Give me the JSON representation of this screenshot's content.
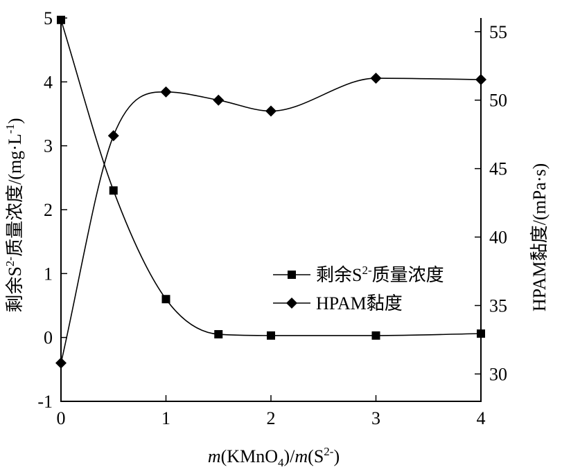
{
  "chart_data": {
    "type": "scatter",
    "x": [
      0,
      0.5,
      1,
      1.5,
      2,
      3,
      4
    ],
    "xticks": [
      "0",
      "1",
      "2",
      "3",
      "4"
    ],
    "xtick_values": [
      0,
      1,
      2,
      3,
      4
    ],
    "xlim": [
      0,
      4
    ],
    "xlabel": {
      "m1": "m",
      "p1": "(KMnO",
      "sub": "4",
      "p2": ")/",
      "m2": "m",
      "p3": "(S",
      "sup": "2-",
      "p4": ")"
    },
    "ylabel_left": {
      "pre": "剩余S",
      "sup": "2-",
      "mid": "质量浓度/(mg·L",
      "sup2": "-1",
      "post": ")"
    },
    "ylabel_right": "HPAM黏度/(mPa·s)",
    "ylim_left": [
      -1,
      5
    ],
    "yticks_left": [
      "-1",
      "0",
      "1",
      "2",
      "3",
      "4",
      "5"
    ],
    "ytick_values_left": [
      -1,
      0,
      1,
      2,
      3,
      4,
      5
    ],
    "ylim_right": [
      28,
      56
    ],
    "yticks_right": [
      "30",
      "35",
      "40",
      "45",
      "50",
      "55"
    ],
    "ytick_values_right": [
      30,
      35,
      40,
      45,
      50,
      55
    ],
    "legend_position": "right",
    "series": [
      {
        "name": {
          "pre": "剩余S",
          "sup": "2-",
          "post": "质量浓度"
        },
        "axis": "left",
        "marker": "square",
        "values": [
          4.97,
          2.3,
          0.6,
          0.05,
          0.03,
          0.03,
          0.06
        ]
      },
      {
        "name": {
          "pre": "HPAM黏度"
        },
        "axis": "right",
        "marker": "diamond",
        "values": [
          30.8,
          47.4,
          50.6,
          50.0,
          49.2,
          51.6,
          51.5
        ]
      }
    ]
  },
  "colors": {
    "ink": "#000000",
    "background": "#ffffff"
  }
}
